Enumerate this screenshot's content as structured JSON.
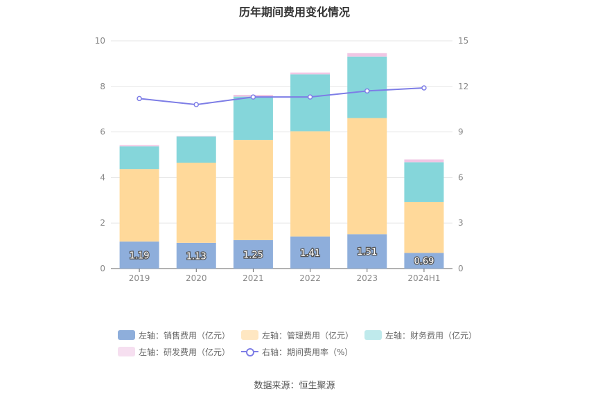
{
  "chart_data": {
    "type": "bar",
    "title": "历年期间费用变化情况",
    "categories": [
      "2019",
      "2020",
      "2021",
      "2022",
      "2023",
      "2024H1"
    ],
    "series": [
      {
        "name": "左轴：销售费用（亿元）",
        "axis": "left",
        "color": "#8eaedb",
        "values": [
          1.19,
          1.13,
          1.25,
          1.41,
          1.51,
          0.69
        ],
        "labels": [
          "1.19",
          "1.13",
          "1.25",
          "1.41",
          "1.51",
          "0.69"
        ]
      },
      {
        "name": "左轴：管理费用（亿元）",
        "axis": "left",
        "color": "#ffd99a",
        "values": [
          3.18,
          3.52,
          4.4,
          4.62,
          5.1,
          2.23
        ]
      },
      {
        "name": "左轴：财务费用（亿元）",
        "axis": "left",
        "color": "#85d6da",
        "values": [
          1.0,
          1.15,
          1.9,
          2.5,
          2.7,
          1.75
        ]
      },
      {
        "name": "左轴：研发费用（亿元）",
        "axis": "left",
        "color": "#f0c6e4",
        "values": [
          0.05,
          0.02,
          0.08,
          0.08,
          0.15,
          0.12
        ]
      },
      {
        "name": "右轴：期间费用率（%）",
        "axis": "right",
        "type": "line",
        "color": "#7d7de6",
        "values": [
          11.2,
          10.8,
          11.3,
          11.3,
          11.7,
          11.9
        ]
      }
    ],
    "left_axis": {
      "ylim": [
        0,
        10
      ],
      "ticks": [
        "0",
        "2",
        "4",
        "6",
        "8",
        "10"
      ]
    },
    "right_axis": {
      "ylim": [
        0,
        15
      ],
      "ticks": [
        "0",
        "3",
        "6",
        "9",
        "12",
        "15"
      ]
    },
    "grid": true,
    "legend_position": "bottom"
  },
  "source": "数据来源：恒生聚源"
}
